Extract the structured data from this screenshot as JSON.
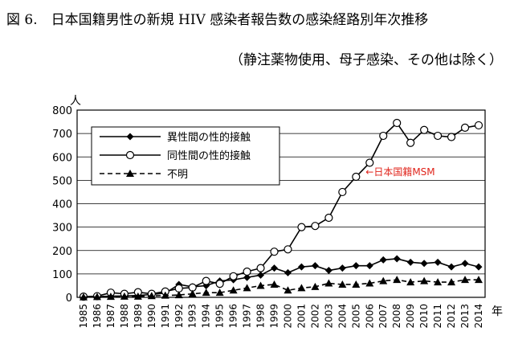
{
  "header": {
    "title": "図 6.　日本国籍男性の新規 HIV 感染者報告数の感染経路別年次推移",
    "subtitle": "（静注薬物使用、母子感染、その他は除く）"
  },
  "chart_data": {
    "type": "line",
    "y_unit": "人",
    "x_unit": "年",
    "ylim": [
      0,
      800
    ],
    "yticks": [
      0,
      100,
      200,
      300,
      400,
      500,
      600,
      700,
      800
    ],
    "grid": true,
    "legend_position": "top-left",
    "categories": [
      "1985",
      "1986",
      "1987",
      "1988",
      "1989",
      "1990",
      "1991",
      "1992",
      "1993",
      "1994",
      "1995",
      "1996",
      "1997",
      "1998",
      "1999",
      "2000",
      "2001",
      "2002",
      "2003",
      "2004",
      "2005",
      "2006",
      "2007",
      "2008",
      "2009",
      "2010",
      "2011",
      "2012",
      "2013",
      "2014"
    ],
    "series": [
      {
        "name": "異性間の性的接触",
        "marker": "diamond",
        "values": [
          2,
          3,
          5,
          6,
          8,
          12,
          18,
          55,
          45,
          50,
          70,
          75,
          85,
          95,
          125,
          105,
          130,
          135,
          115,
          125,
          135,
          135,
          160,
          165,
          150,
          145,
          150,
          130,
          145,
          130
        ]
      },
      {
        "name": "同性間の性的接触",
        "marker": "circle",
        "values": [
          3,
          5,
          20,
          15,
          22,
          15,
          25,
          38,
          42,
          70,
          58,
          90,
          110,
          125,
          195,
          205,
          300,
          305,
          340,
          450,
          515,
          575,
          690,
          745,
          660,
          715,
          690,
          685,
          725,
          735
        ]
      },
      {
        "name": "不明",
        "marker": "triangle",
        "dashed": true,
        "values": [
          1,
          2,
          3,
          4,
          4,
          6,
          8,
          10,
          15,
          20,
          20,
          30,
          40,
          50,
          55,
          30,
          40,
          45,
          60,
          55,
          55,
          60,
          70,
          75,
          65,
          70,
          65,
          65,
          75,
          75
        ]
      }
    ],
    "annotation": {
      "text": "←日本国籍MSM",
      "color": "#e0241b",
      "year": "2006",
      "value": 535
    }
  }
}
